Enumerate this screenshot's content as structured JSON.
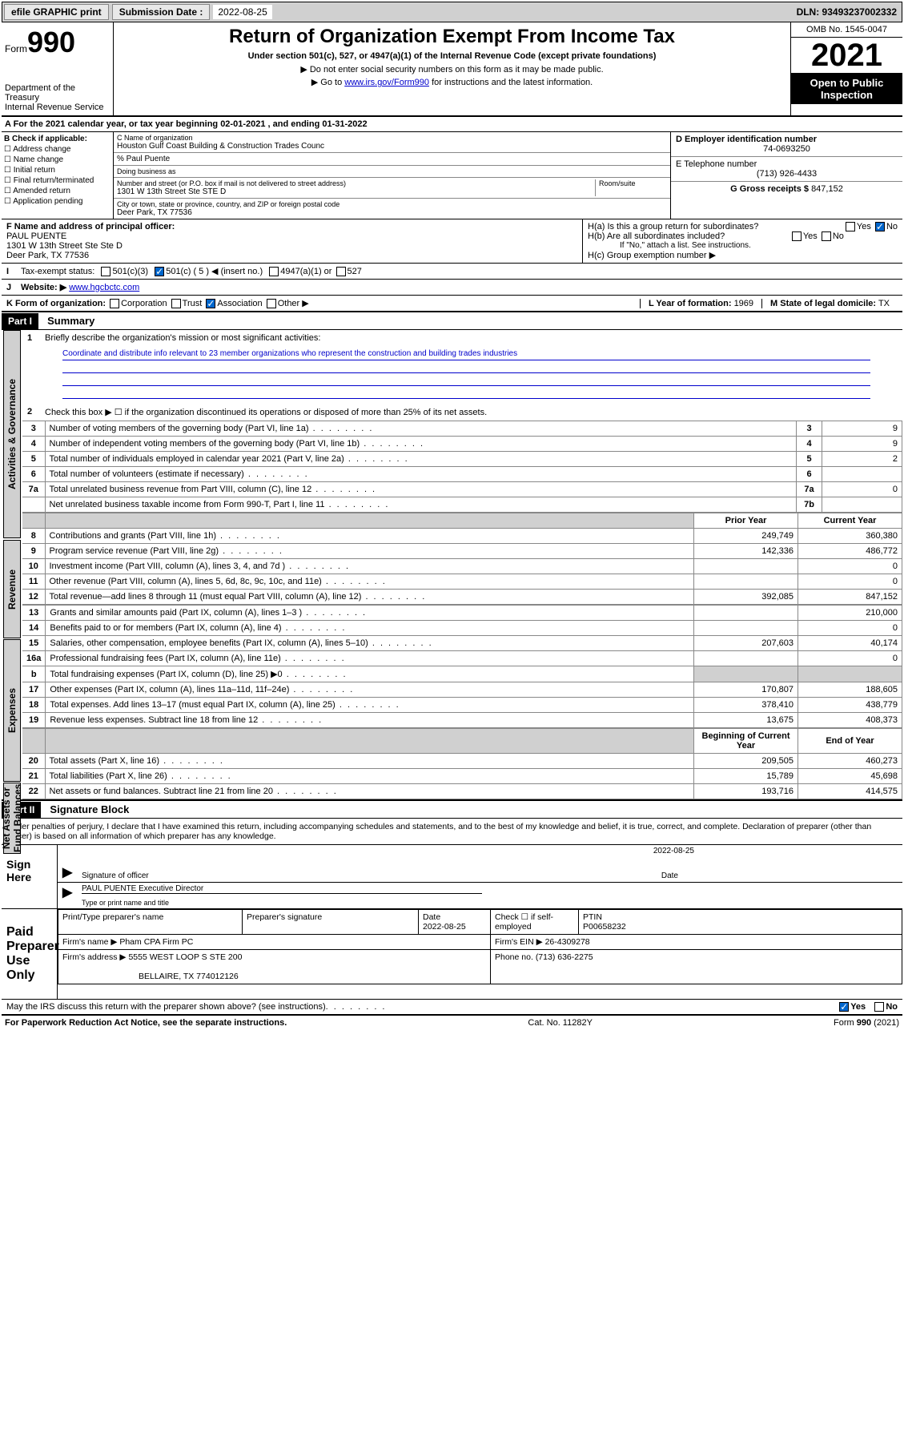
{
  "topbar": {
    "efile": "efile GRAPHIC print",
    "sub_label": "Submission Date :",
    "sub_date": "2022-08-25",
    "dln": "DLN: 93493237002332"
  },
  "header": {
    "form_word": "Form",
    "form_num": "990",
    "title": "Return of Organization Exempt From Income Tax",
    "sub": "Under section 501(c), 527, or 4947(a)(1) of the Internal Revenue Code (except private foundations)",
    "note1": "▶ Do not enter social security numbers on this form as it may be made public.",
    "note2_pre": "▶ Go to ",
    "note2_link": "www.irs.gov/Form990",
    "note2_post": " for instructions and the latest information.",
    "dept": "Department of the Treasury\nInternal Revenue Service",
    "omb": "OMB No. 1545-0047",
    "year": "2021",
    "open": "Open to Public Inspection"
  },
  "rowA": "A For the 2021 calendar year, or tax year beginning 02-01-2021   , and ending 01-31-2022",
  "secB": {
    "hdr": "B Check if applicable:",
    "opts": [
      "Address change",
      "Name change",
      "Initial return",
      "Final return/terminated",
      "Amended return",
      "Application pending"
    ],
    "c_label": "C Name of organization",
    "c_name": "Houston Gulf Coast Building & Construction Trades Counc",
    "care": "% Paul Puente",
    "dba_label": "Doing business as",
    "addr_label": "Number and street (or P.O. box if mail is not delivered to street address)",
    "addr": "1301 W 13th Street Ste STE D",
    "room_label": "Room/suite",
    "city_label": "City or town, state or province, country, and ZIP or foreign postal code",
    "city": "Deer Park, TX  77536",
    "d_label": "D Employer identification number",
    "d_val": "74-0693250",
    "e_label": "E Telephone number",
    "e_val": "(713) 926-4433",
    "g_label": "G Gross receipts $",
    "g_val": "847,152"
  },
  "secF": {
    "f_label": "F Name and address of principal officer:",
    "f_name": "PAUL PUENTE",
    "f_addr1": "1301 W 13th Street Ste Ste D",
    "f_addr2": "Deer Park, TX  77536",
    "ha": "H(a)  Is this a group return for subordinates?",
    "hb": "H(b)  Are all subordinates included?",
    "hb_note": "If \"No,\" attach a list. See instructions.",
    "hc": "H(c)  Group exemption number ▶",
    "yes": "Yes",
    "no": "No"
  },
  "rowI": {
    "label": "Tax-exempt status:",
    "o1": "501(c)(3)",
    "o2": "501(c) ( 5 ) ◀ (insert no.)",
    "o3": "4947(a)(1) or",
    "o4": "527"
  },
  "rowJ": {
    "label": "Website: ▶",
    "val": "www.hgcbctc.com"
  },
  "rowK": {
    "label": "K Form of organization:",
    "o1": "Corporation",
    "o2": "Trust",
    "o3": "Association",
    "o4": "Other ▶",
    "l_label": "L Year of formation:",
    "l_val": "1969",
    "m_label": "M State of legal domicile:",
    "m_val": "TX"
  },
  "part1": {
    "hdr": "Part I",
    "title": "Summary",
    "q1": "Briefly describe the organization's mission or most significant activities:",
    "mission": "Coordinate and distribute info relevant to 23 member organizations who represent the construction and building trades industries",
    "q2": "Check this box ▶ ☐  if the organization discontinued its operations or disposed of more than 25% of its net assets.",
    "vtab_ag": "Activities & Governance",
    "vtab_rev": "Revenue",
    "vtab_exp": "Expenses",
    "vtab_na": "Net Assets or Fund Balances",
    "col_prior": "Prior Year",
    "col_curr": "Current Year",
    "col_beg": "Beginning of Current Year",
    "col_end": "End of Year",
    "lines_gov": [
      {
        "n": "3",
        "d": "Number of voting members of the governing body (Part VI, line 1a)",
        "r": "3",
        "v": "9"
      },
      {
        "n": "4",
        "d": "Number of independent voting members of the governing body (Part VI, line 1b)",
        "r": "4",
        "v": "9"
      },
      {
        "n": "5",
        "d": "Total number of individuals employed in calendar year 2021 (Part V, line 2a)",
        "r": "5",
        "v": "2"
      },
      {
        "n": "6",
        "d": "Total number of volunteers (estimate if necessary)",
        "r": "6",
        "v": ""
      },
      {
        "n": "7a",
        "d": "Total unrelated business revenue from Part VIII, column (C), line 12",
        "r": "7a",
        "v": "0"
      },
      {
        "n": "",
        "d": "Net unrelated business taxable income from Form 990-T, Part I, line 11",
        "r": "7b",
        "v": ""
      }
    ],
    "lines_rev": [
      {
        "n": "8",
        "d": "Contributions and grants (Part VIII, line 1h)",
        "p": "249,749",
        "c": "360,380"
      },
      {
        "n": "9",
        "d": "Program service revenue (Part VIII, line 2g)",
        "p": "142,336",
        "c": "486,772"
      },
      {
        "n": "10",
        "d": "Investment income (Part VIII, column (A), lines 3, 4, and 7d )",
        "p": "",
        "c": "0"
      },
      {
        "n": "11",
        "d": "Other revenue (Part VIII, column (A), lines 5, 6d, 8c, 9c, 10c, and 11e)",
        "p": "",
        "c": "0"
      },
      {
        "n": "12",
        "d": "Total revenue—add lines 8 through 11 (must equal Part VIII, column (A), line 12)",
        "p": "392,085",
        "c": "847,152"
      }
    ],
    "lines_exp": [
      {
        "n": "13",
        "d": "Grants and similar amounts paid (Part IX, column (A), lines 1–3 )",
        "p": "",
        "c": "210,000"
      },
      {
        "n": "14",
        "d": "Benefits paid to or for members (Part IX, column (A), line 4)",
        "p": "",
        "c": "0"
      },
      {
        "n": "15",
        "d": "Salaries, other compensation, employee benefits (Part IX, column (A), lines 5–10)",
        "p": "207,603",
        "c": "40,174"
      },
      {
        "n": "16a",
        "d": "Professional fundraising fees (Part IX, column (A), line 11e)",
        "p": "",
        "c": "0"
      },
      {
        "n": "b",
        "d": "Total fundraising expenses (Part IX, column (D), line 25) ▶0",
        "p": "shade",
        "c": "shade"
      },
      {
        "n": "17",
        "d": "Other expenses (Part IX, column (A), lines 11a–11d, 11f–24e)",
        "p": "170,807",
        "c": "188,605"
      },
      {
        "n": "18",
        "d": "Total expenses. Add lines 13–17 (must equal Part IX, column (A), line 25)",
        "p": "378,410",
        "c": "438,779"
      },
      {
        "n": "19",
        "d": "Revenue less expenses. Subtract line 18 from line 12",
        "p": "13,675",
        "c": "408,373"
      }
    ],
    "lines_na": [
      {
        "n": "20",
        "d": "Total assets (Part X, line 16)",
        "p": "209,505",
        "c": "460,273"
      },
      {
        "n": "21",
        "d": "Total liabilities (Part X, line 26)",
        "p": "15,789",
        "c": "45,698"
      },
      {
        "n": "22",
        "d": "Net assets or fund balances. Subtract line 21 from line 20",
        "p": "193,716",
        "c": "414,575"
      }
    ]
  },
  "part2": {
    "hdr": "Part II",
    "title": "Signature Block",
    "decl": "Under penalties of perjury, I declare that I have examined this return, including accompanying schedules and statements, and to the best of my knowledge and belief, it is true, correct, and complete. Declaration of preparer (other than officer) is based on all information of which preparer has any knowledge.",
    "sign_here": "Sign Here",
    "sig_officer": "Signature of officer",
    "date": "Date",
    "sig_date": "2022-08-25",
    "name_title": "PAUL PUENTE  Executive Director",
    "name_title_label": "Type or print name and title",
    "paid_hdr": "Paid Preparer Use Only",
    "pt_name": "Print/Type preparer's name",
    "pt_sig": "Preparer's signature",
    "pt_date_label": "Date",
    "pt_date": "2022-08-25",
    "pt_check": "Check ☐ if self-employed",
    "ptin_label": "PTIN",
    "ptin": "P00658232",
    "firm_name_label": "Firm's name    ▶",
    "firm_name": "Pham CPA Firm PC",
    "firm_ein_label": "Firm's EIN ▶",
    "firm_ein": "26-4309278",
    "firm_addr_label": "Firm's address ▶",
    "firm_addr1": "5555 WEST LOOP S STE 200",
    "firm_addr2": "BELLAIRE, TX  774012126",
    "phone_label": "Phone no.",
    "phone": "(713) 636-2275",
    "discuss": "May the IRS discuss this return with the preparer shown above? (see instructions)"
  },
  "footer": {
    "pra": "For Paperwork Reduction Act Notice, see the separate instructions.",
    "cat": "Cat. No. 11282Y",
    "form": "Form 990 (2021)"
  }
}
